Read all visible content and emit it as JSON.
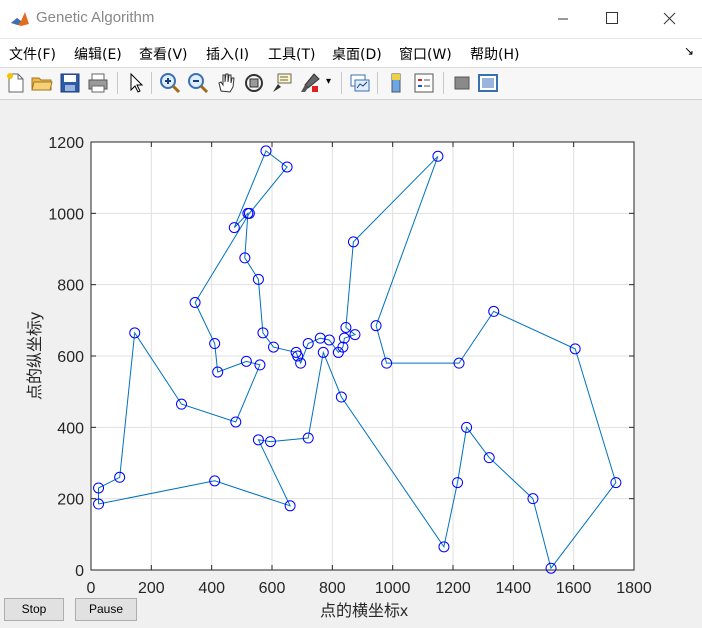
{
  "window": {
    "title": "Genetic Algorithm"
  },
  "menu": [
    "文件(F)",
    "编辑(E)",
    "查看(V)",
    "插入(I)",
    "工具(T)",
    "桌面(D)",
    "窗口(W)",
    "帮助(H)"
  ],
  "toolbar": {
    "icons": [
      "new-file-icon",
      "open-folder-icon",
      "save-icon",
      "print-icon",
      "pointer-icon",
      "zoom-in-icon",
      "zoom-out-icon",
      "pan-hand-icon",
      "rotate-3d-icon",
      "data-cursor-icon",
      "brush-icon",
      "link-plot-icon",
      "colorbar-icon",
      "legend-icon",
      "hide-plot-tools-icon",
      "show-plot-tools-icon"
    ]
  },
  "buttons": {
    "stop_label": "Stop",
    "pause_label": "Pause"
  },
  "colors": {
    "line": "#0072bd",
    "marker": "#0000ff",
    "grid": "#e0e0e0"
  },
  "chart_data": {
    "type": "line",
    "xlabel": "点的横坐标x",
    "ylabel": "点的纵坐标y",
    "xlim": [
      0,
      1800
    ],
    "ylim": [
      0,
      1200
    ],
    "xticks": [
      0,
      200,
      400,
      600,
      800,
      1000,
      1200,
      1400,
      1600,
      1800
    ],
    "yticks": [
      0,
      200,
      400,
      600,
      800,
      1000,
      1200
    ],
    "grid": true,
    "marker": "circle",
    "path": [
      [
        25,
        185
      ],
      [
        410,
        250
      ],
      [
        660,
        180
      ],
      [
        555,
        365
      ],
      [
        595,
        360
      ],
      [
        720,
        370
      ],
      [
        770,
        610
      ],
      [
        830,
        485
      ],
      [
        1170,
        65
      ],
      [
        1215,
        245
      ],
      [
        1245,
        400
      ],
      [
        1320,
        315
      ],
      [
        1465,
        200
      ],
      [
        1525,
        5
      ],
      [
        1740,
        245
      ],
      [
        1605,
        620
      ],
      [
        1335,
        725
      ],
      [
        1220,
        580
      ],
      [
        980,
        580
      ],
      [
        945,
        685
      ],
      [
        1150,
        1160
      ],
      [
        870,
        920
      ],
      [
        845,
        680
      ],
      [
        875,
        660
      ],
      [
        840,
        650
      ],
      [
        835,
        625
      ],
      [
        820,
        610
      ],
      [
        790,
        645
      ],
      [
        760,
        650
      ],
      [
        720,
        635
      ],
      [
        695,
        580
      ],
      [
        685,
        600
      ],
      [
        680,
        610
      ],
      [
        605,
        625
      ],
      [
        570,
        665
      ],
      [
        555,
        815
      ],
      [
        510,
        875
      ],
      [
        520,
        1000
      ],
      [
        475,
        960
      ],
      [
        580,
        1175
      ],
      [
        650,
        1130
      ],
      [
        525,
        1000
      ],
      [
        345,
        750
      ],
      [
        410,
        635
      ],
      [
        420,
        555
      ],
      [
        515,
        585
      ],
      [
        560,
        575
      ],
      [
        480,
        415
      ],
      [
        300,
        465
      ],
      [
        145,
        665
      ],
      [
        95,
        260
      ],
      [
        25,
        230
      ],
      [
        25,
        185
      ]
    ]
  }
}
